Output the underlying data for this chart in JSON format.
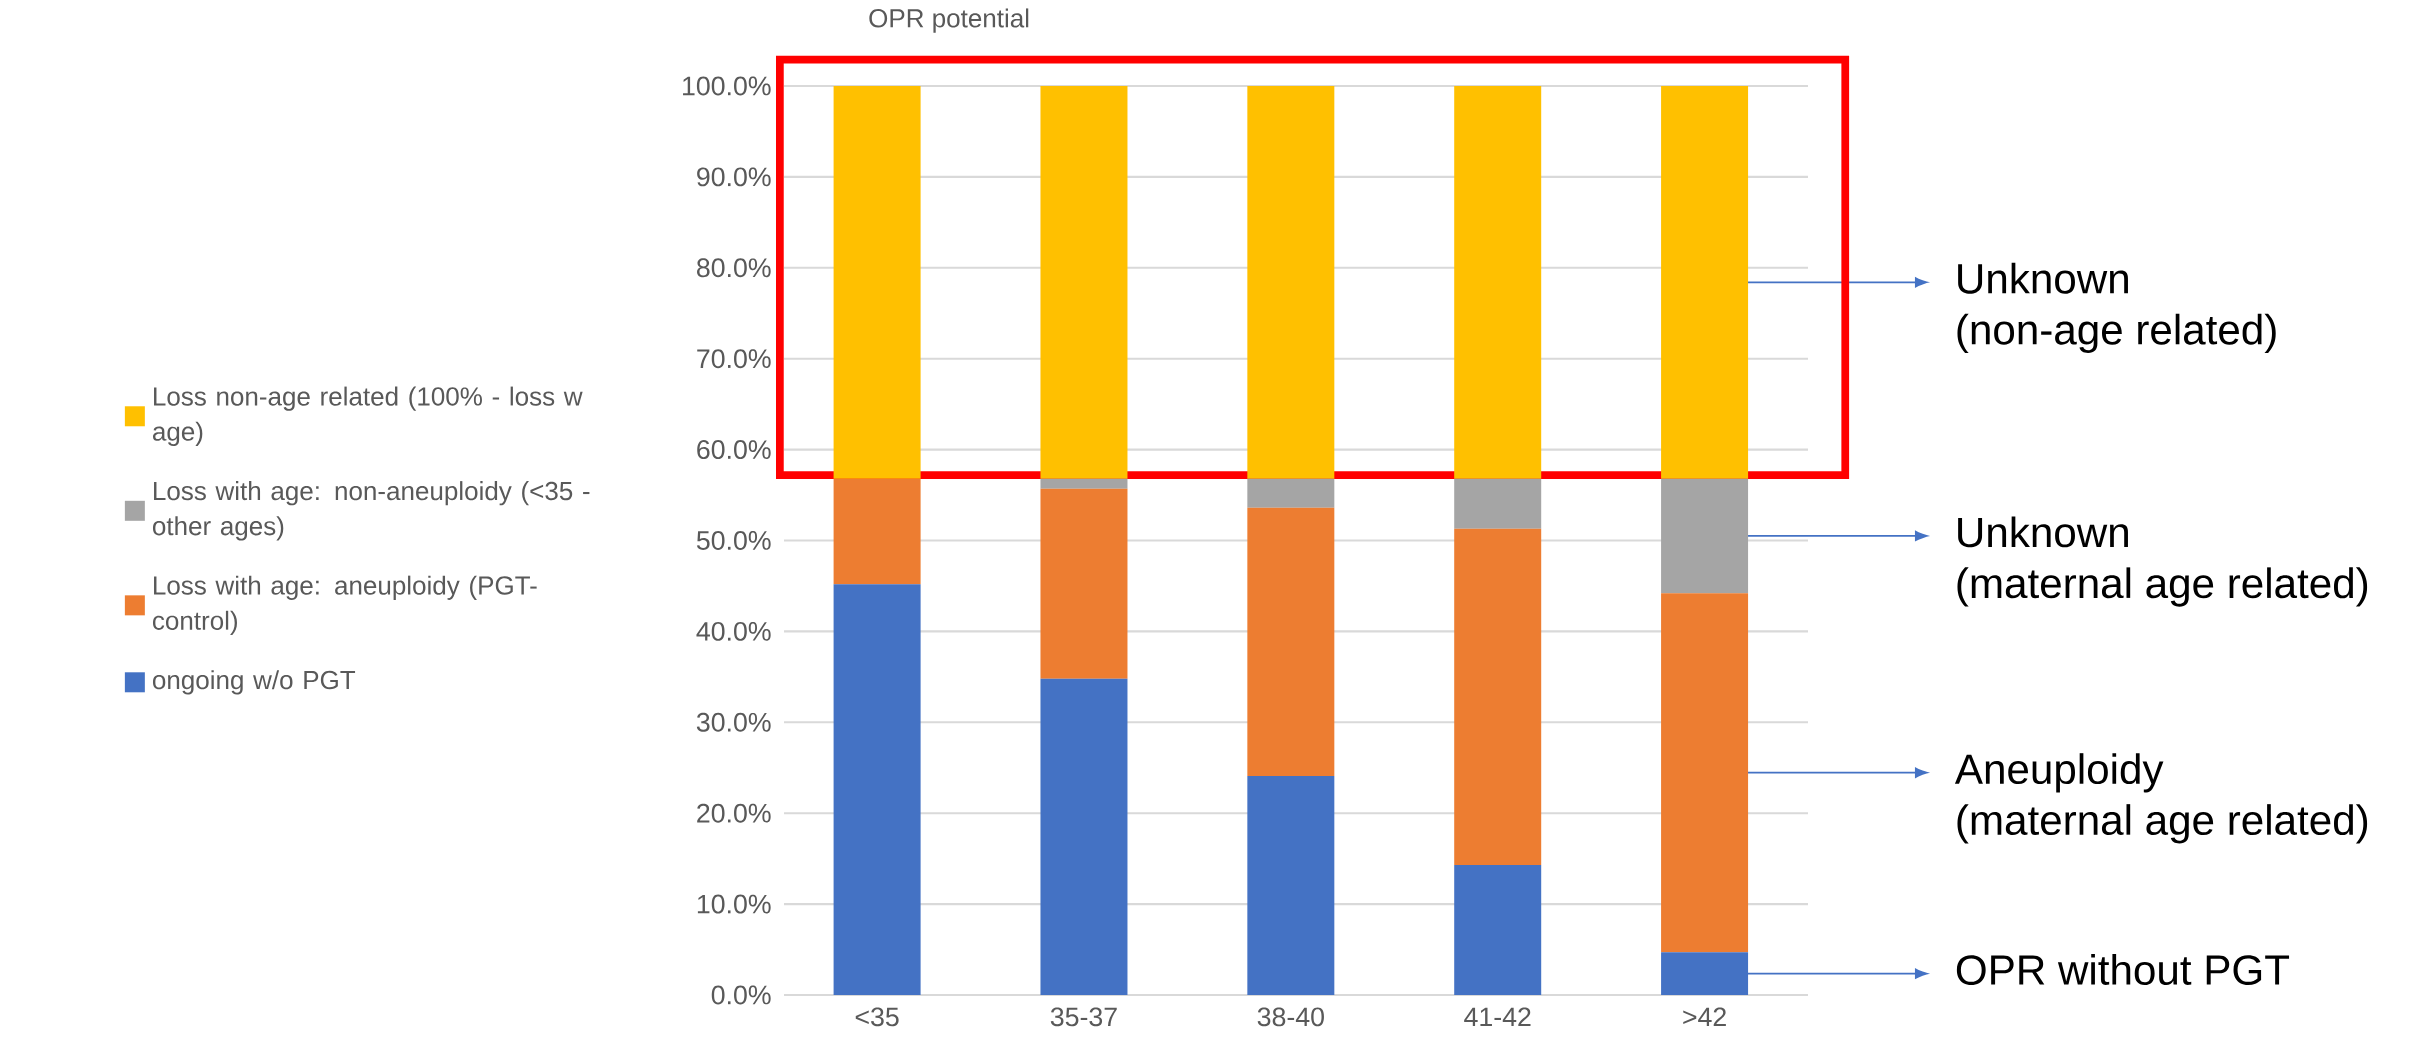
{
  "chart_data": {
    "type": "bar",
    "stacked": true,
    "title": "OPR potential",
    "categories": [
      "<35",
      "35-37",
      "38-40",
      "41-42",
      ">42"
    ],
    "series": [
      {
        "name": "ongoing w/o PGT",
        "color": "#4472c4",
        "values": [
          45.2,
          34.8,
          24.1,
          14.3,
          4.7
        ]
      },
      {
        "name": "Loss with age: aneuploidy (PGT-control)",
        "color": "#ed7d31",
        "values": [
          11.6,
          20.9,
          29.5,
          37.0,
          39.5
        ]
      },
      {
        "name": "Loss with age: non-aneuploidy (<35 - other ages)",
        "color": "#a5a5a5",
        "values": [
          0,
          1.1,
          3.2,
          5.5,
          12.6
        ]
      },
      {
        "name": "Loss non-age related (100% - loss w age)",
        "color": "#ffc000",
        "values": [
          43.2,
          43.2,
          43.2,
          43.2,
          43.2
        ]
      }
    ],
    "ylim": [
      0,
      100
    ],
    "yticks": [
      {
        "value": 0,
        "label": "0.0%"
      },
      {
        "value": 10,
        "label": "10.0%"
      },
      {
        "value": 20,
        "label": "20.0%"
      },
      {
        "value": 30,
        "label": "30.0%"
      },
      {
        "value": 40,
        "label": "40.0%"
      },
      {
        "value": 50,
        "label": "50.0%"
      },
      {
        "value": 60,
        "label": "60.0%"
      },
      {
        "value": 70,
        "label": "70.0%"
      },
      {
        "value": 80,
        "label": "80.0%"
      },
      {
        "value": 90,
        "label": "90.0%"
      },
      {
        "value": 100,
        "label": "100.0%"
      }
    ],
    "grid": "y",
    "legend": "left",
    "annotations": [
      "Unknown",
      "(non-age related)",
      "Unknown",
      "(maternal age related)",
      "Aneuploidy",
      "(maternal age related)",
      "OPR without PGT"
    ]
  }
}
